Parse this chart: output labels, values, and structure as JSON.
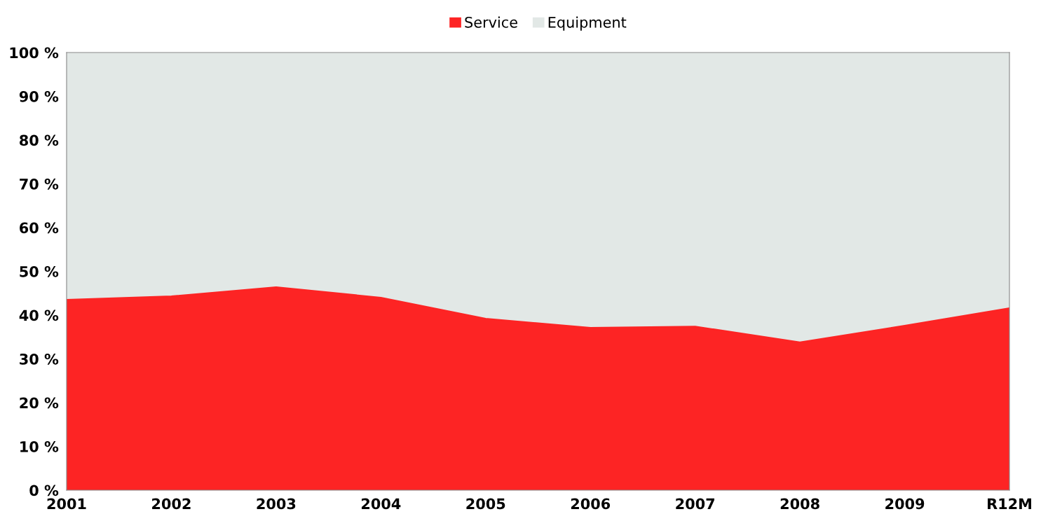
{
  "chart_data": {
    "type": "area",
    "stacked": true,
    "categories": [
      "2001",
      "2002",
      "2003",
      "2004",
      "2005",
      "2006",
      "2007",
      "2008",
      "2009",
      "R12M"
    ],
    "series": [
      {
        "name": "Service",
        "color": "#fd2424",
        "values": [
          43.5,
          44.3,
          46.4,
          44.0,
          39.2,
          37.1,
          37.4,
          33.8,
          37.6,
          41.6
        ]
      },
      {
        "name": "Equipment",
        "color": "#e2e8e6",
        "values": [
          56.5,
          55.7,
          53.6,
          56.0,
          60.8,
          62.9,
          62.6,
          66.2,
          62.4,
          58.4
        ]
      }
    ],
    "ylim": [
      0,
      100
    ],
    "yticks": [
      {
        "value": 0,
        "label": "0 %"
      },
      {
        "value": 10,
        "label": "10 %"
      },
      {
        "value": 20,
        "label": "20 %"
      },
      {
        "value": 30,
        "label": "30 %"
      },
      {
        "value": 40,
        "label": "40 %"
      },
      {
        "value": 50,
        "label": "50 %"
      },
      {
        "value": 60,
        "label": "60 %"
      },
      {
        "value": 70,
        "label": "70 %"
      },
      {
        "value": 80,
        "label": "80 %"
      },
      {
        "value": 90,
        "label": "90 %"
      },
      {
        "value": 100,
        "label": "100 %"
      }
    ],
    "grid": false,
    "legend": "top"
  }
}
